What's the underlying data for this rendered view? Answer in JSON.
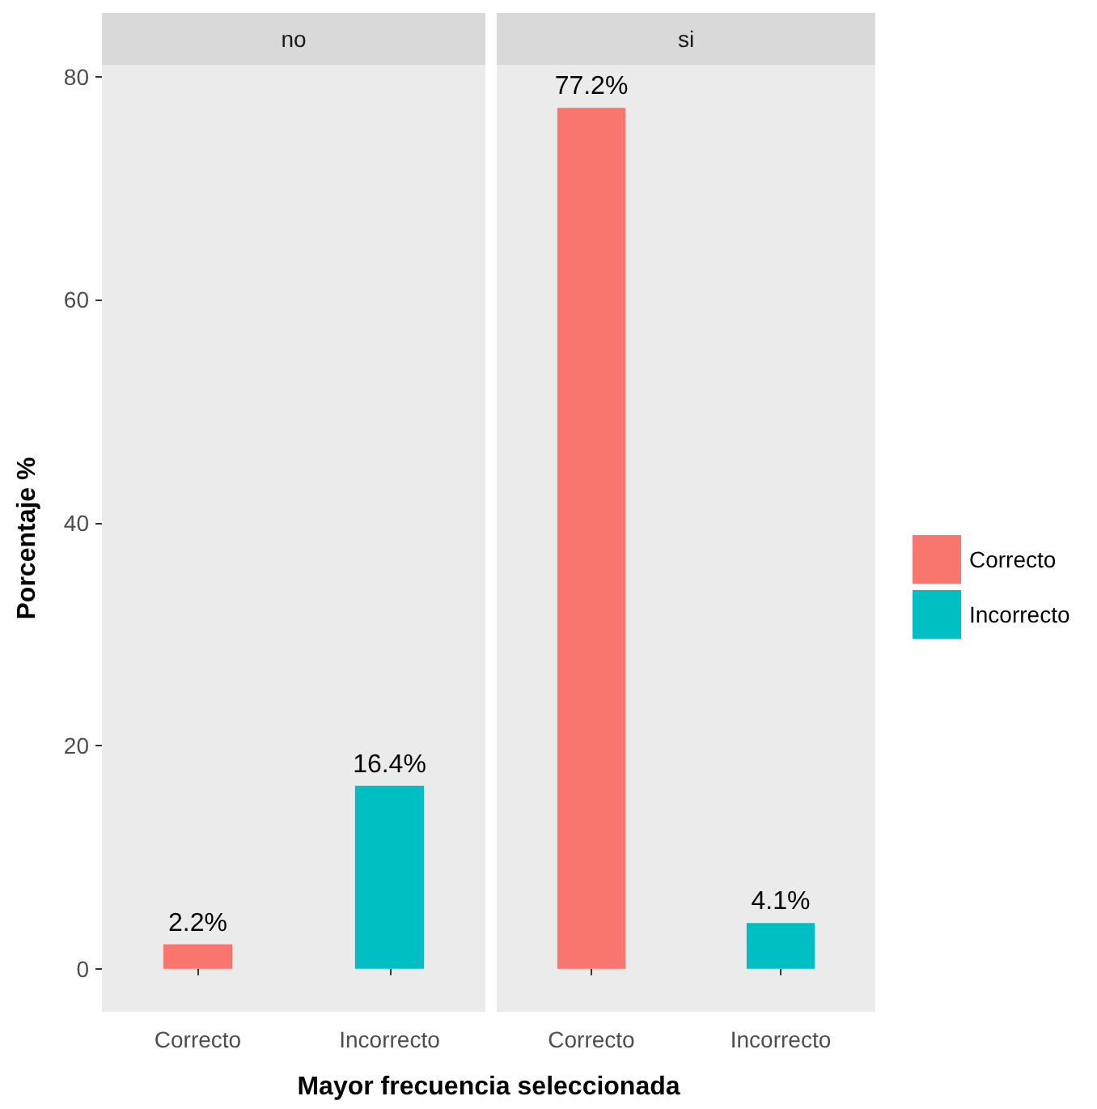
{
  "chart_data": [
    {
      "type": "bar",
      "title": "no",
      "xlabel": "Mayor frecuencia seleccionada",
      "ylabel": "Porcentaje %",
      "categories": [
        "Correcto",
        "Incorrecto"
      ],
      "series": [
        {
          "color": "#f8766d",
          "values": [
            2.2,
            null
          ],
          "value_labels": [
            "2.2%",
            null
          ]
        },
        {
          "color": "#00bfc4",
          "values": [
            null,
            16.4
          ],
          "value_labels": [
            null,
            "16.4%"
          ]
        }
      ],
      "ylim": [
        -3.86,
        81.06
      ],
      "yticks": [
        0,
        20,
        40,
        60,
        80
      ],
      "grid": false,
      "legend": false
    },
    {
      "type": "bar",
      "title": "si",
      "categories": [
        "Correcto",
        "Incorrecto"
      ],
      "series": [
        {
          "name": "Correcto",
          "color": "#f8766d",
          "values": [
            77.2,
            null
          ],
          "value_labels": [
            "77.2%",
            null
          ]
        },
        {
          "name": "Incorrecto",
          "color": "#00bfc4",
          "values": [
            null,
            4.1
          ],
          "value_labels": [
            null,
            "4.1%"
          ]
        }
      ],
      "ylim": [
        -3.86,
        81.06
      ],
      "grid": false,
      "legend": "right",
      "tick_labels": "x"
    }
  ]
}
